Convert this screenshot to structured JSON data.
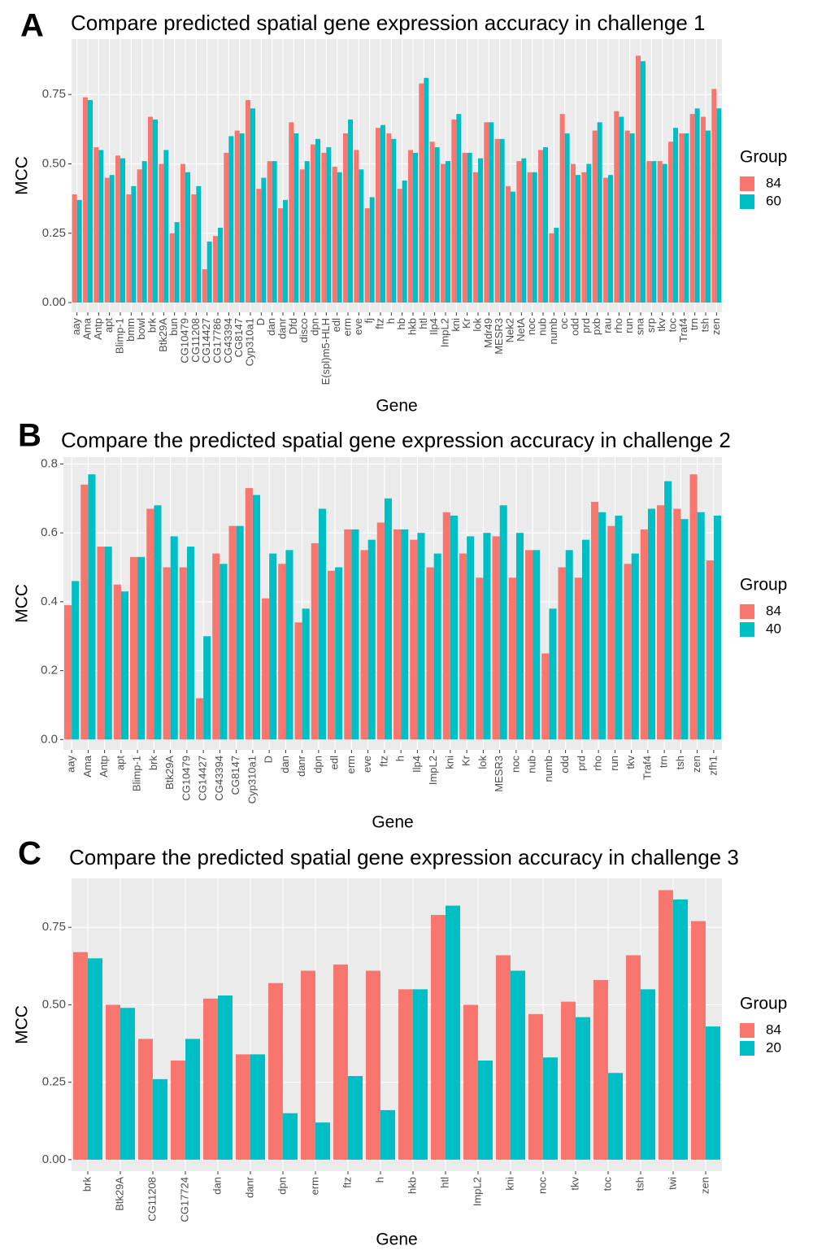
{
  "chart_data": [
    {
      "type": "bar",
      "panel": "A",
      "title": "Compare predicted spatial gene expression accuracy in challenge 1",
      "x_label": "Gene",
      "y_label": "MCC",
      "legend_title": "Group",
      "categories": [
        "aay",
        "Ama",
        "Antp",
        "apt",
        "Blimp-1",
        "bmm",
        "bowl",
        "brk",
        "Btk29A",
        "bun",
        "CG10479",
        "CG11208",
        "CG14427",
        "CG17786",
        "CG43394",
        "CG8147",
        "Cyp310a1",
        "D",
        "dan",
        "danr",
        "Dfd",
        "disco",
        "dpn",
        "E(spl)m5-HLH",
        "edl",
        "erm",
        "eve",
        "fj",
        "ftz",
        "h",
        "hb",
        "hkb",
        "htl",
        "Ilp4",
        "ImpL2",
        "kni",
        "Kr",
        "lok",
        "Mdr49",
        "MESR3",
        "Nek2",
        "NetA",
        "noc",
        "nub",
        "numb",
        "oc",
        "odd",
        "prd",
        "pxb",
        "rau",
        "rho",
        "run",
        "sna",
        "srp",
        "tkv",
        "toc",
        "Traf4",
        "trn",
        "tsh",
        "zen"
      ],
      "series": [
        {
          "name": "84",
          "color": "#F8766D",
          "values": [
            0.39,
            0.74,
            0.56,
            0.45,
            0.53,
            0.39,
            0.48,
            0.67,
            0.5,
            0.25,
            0.5,
            0.39,
            0.12,
            0.24,
            0.54,
            0.62,
            0.73,
            0.41,
            0.51,
            0.34,
            0.65,
            0.48,
            0.57,
            0.54,
            0.49,
            0.61,
            0.55,
            0.34,
            0.63,
            0.61,
            0.41,
            0.55,
            0.79,
            0.58,
            0.5,
            0.66,
            0.54,
            0.47,
            0.65,
            0.59,
            0.42,
            0.51,
            0.47,
            0.55,
            0.25,
            0.68,
            0.5,
            0.47,
            0.62,
            0.45,
            0.69,
            0.62,
            0.89,
            0.51,
            0.51,
            0.58,
            0.61,
            0.68,
            0.67,
            0.77
          ]
        },
        {
          "name": "60",
          "color": "#00BFC4",
          "values": [
            0.37,
            0.73,
            0.55,
            0.46,
            0.52,
            0.42,
            0.51,
            0.66,
            0.55,
            0.29,
            0.47,
            0.42,
            0.22,
            0.27,
            0.6,
            0.61,
            0.7,
            0.45,
            0.51,
            0.37,
            0.61,
            0.51,
            0.59,
            0.56,
            0.47,
            0.66,
            0.48,
            0.38,
            0.64,
            0.59,
            0.44,
            0.54,
            0.81,
            0.56,
            0.51,
            0.68,
            0.54,
            0.52,
            0.65,
            0.59,
            0.4,
            0.52,
            0.47,
            0.56,
            0.27,
            0.61,
            0.46,
            0.5,
            0.65,
            0.46,
            0.67,
            0.61,
            0.87,
            0.51,
            0.5,
            0.63,
            0.61,
            0.7,
            0.62,
            0.7
          ]
        }
      ],
      "ylim": [
        -0.035,
        0.95
      ],
      "yticks": [
        {
          "value": 0,
          "label": "0.00"
        },
        0.25,
        {
          "value": 0.5,
          "label": "0.50"
        },
        0.75
      ],
      "grid": true
    },
    {
      "type": "bar",
      "panel": "B",
      "title": "Compare the predicted spatial gene expression accuracy in challenge 2",
      "x_label": "Gene",
      "y_label": "MCC",
      "legend_title": "Group",
      "categories": [
        "aay",
        "Ama",
        "Antp",
        "apt",
        "Blimp-1",
        "brk",
        "Btk29A",
        "CG10479",
        "CG14427",
        "CG43394",
        "CG8147",
        "Cyp310a1",
        "D",
        "dan",
        "danr",
        "dpn",
        "edl",
        "erm",
        "eve",
        "ftz",
        "h",
        "Ilp4",
        "ImpL2",
        "kni",
        "Kr",
        "lok",
        "MESR3",
        "noc",
        "nub",
        "numb",
        "odd",
        "prd",
        "rho",
        "run",
        "tkv",
        "Traf4",
        "trn",
        "tsh",
        "zen",
        "zfh1"
      ],
      "series": [
        {
          "name": "84",
          "color": "#F8766D",
          "values": [
            0.39,
            0.74,
            0.56,
            0.45,
            0.53,
            0.67,
            0.5,
            0.5,
            0.12,
            0.54,
            0.62,
            0.73,
            0.41,
            0.51,
            0.34,
            0.57,
            0.49,
            0.61,
            0.55,
            0.63,
            0.61,
            0.58,
            0.5,
            0.66,
            0.54,
            0.47,
            0.59,
            0.47,
            0.55,
            0.25,
            0.5,
            0.47,
            0.69,
            0.62,
            0.51,
            0.61,
            0.68,
            0.67,
            0.77,
            0.52
          ]
        },
        {
          "name": "40",
          "color": "#00BFC4",
          "values": [
            0.46,
            0.77,
            0.56,
            0.43,
            0.53,
            0.68,
            0.59,
            0.56,
            0.3,
            0.51,
            0.62,
            0.71,
            0.54,
            0.55,
            0.38,
            0.67,
            0.5,
            0.61,
            0.58,
            0.7,
            0.61,
            0.6,
            0.54,
            0.65,
            0.59,
            0.6,
            0.68,
            0.6,
            0.55,
            0.38,
            0.55,
            0.58,
            0.66,
            0.65,
            0.54,
            0.67,
            0.75,
            0.64,
            0.66,
            0.65
          ]
        }
      ],
      "ylim": [
        -0.03,
        0.82
      ],
      "yticks": [
        {
          "value": 0,
          "label": "0.0"
        },
        0.2,
        0.4,
        0.6,
        0.8
      ],
      "grid": true
    },
    {
      "type": "bar",
      "panel": "C",
      "title": "Compare the predicted spatial gene expression accuracy in challenge 3",
      "x_label": "Gene",
      "y_label": "MCC",
      "legend_title": "Group",
      "categories": [
        "brk",
        "Btk29A",
        "CG11208",
        "CG17724",
        "dan",
        "danr",
        "dpn",
        "erm",
        "ftz",
        "h",
        "hkb",
        "htl",
        "ImpL2",
        "kni",
        "noc",
        "tkv",
        "toc",
        "tsh",
        "twi",
        "zen"
      ],
      "series": [
        {
          "name": "84",
          "color": "#F8766D",
          "values": [
            0.67,
            0.5,
            0.39,
            0.32,
            0.52,
            0.34,
            0.57,
            0.61,
            0.63,
            0.61,
            0.55,
            0.79,
            0.5,
            0.66,
            0.47,
            0.51,
            0.58,
            0.66,
            0.87,
            0.77
          ]
        },
        {
          "name": "20",
          "color": "#00BFC4",
          "values": [
            0.65,
            0.49,
            0.26,
            0.39,
            0.53,
            0.34,
            0.15,
            0.12,
            0.27,
            0.16,
            0.55,
            0.82,
            0.32,
            0.61,
            0.33,
            0.46,
            0.28,
            0.55,
            0.84,
            0.43
          ]
        }
      ],
      "ylim": [
        -0.037,
        0.908
      ],
      "yticks": [
        {
          "value": 0,
          "label": "0.00"
        },
        0.25,
        {
          "value": 0.5,
          "label": "0.50"
        },
        0.75
      ],
      "grid": true
    }
  ]
}
